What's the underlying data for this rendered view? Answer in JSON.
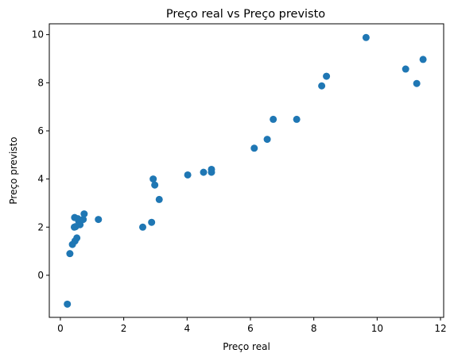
{
  "chart_data": {
    "type": "scatter",
    "title": "Preço real vs Preço previsto",
    "xlabel": "Preço real",
    "ylabel": "Preço previsto",
    "xlim": [
      -0.35,
      12.1
    ],
    "ylim": [
      -1.75,
      10.45
    ],
    "xticks": [
      0,
      2,
      4,
      6,
      8,
      10,
      12
    ],
    "yticks": [
      0,
      2,
      4,
      6,
      8,
      10
    ],
    "grid": false,
    "color": "#1f77b4",
    "points": [
      {
        "x": 0.22,
        "y": -1.2
      },
      {
        "x": 0.3,
        "y": 0.9
      },
      {
        "x": 0.38,
        "y": 1.28
      },
      {
        "x": 0.46,
        "y": 1.42
      },
      {
        "x": 0.52,
        "y": 1.55
      },
      {
        "x": 0.44,
        "y": 2.0
      },
      {
        "x": 0.48,
        "y": 2.02
      },
      {
        "x": 0.62,
        "y": 2.1
      },
      {
        "x": 0.58,
        "y": 2.25
      },
      {
        "x": 0.72,
        "y": 2.32
      },
      {
        "x": 0.45,
        "y": 2.4
      },
      {
        "x": 0.55,
        "y": 2.35
      },
      {
        "x": 0.75,
        "y": 2.55
      },
      {
        "x": 1.2,
        "y": 2.32
      },
      {
        "x": 2.6,
        "y": 2.0
      },
      {
        "x": 2.88,
        "y": 2.2
      },
      {
        "x": 2.93,
        "y": 4.0
      },
      {
        "x": 2.98,
        "y": 3.75
      },
      {
        "x": 3.12,
        "y": 3.15
      },
      {
        "x": 4.02,
        "y": 4.17
      },
      {
        "x": 4.52,
        "y": 4.28
      },
      {
        "x": 4.77,
        "y": 4.28
      },
      {
        "x": 4.77,
        "y": 4.4
      },
      {
        "x": 6.12,
        "y": 5.28
      },
      {
        "x": 6.53,
        "y": 5.65
      },
      {
        "x": 6.72,
        "y": 6.48
      },
      {
        "x": 7.46,
        "y": 6.48
      },
      {
        "x": 8.25,
        "y": 7.87
      },
      {
        "x": 8.4,
        "y": 8.27
      },
      {
        "x": 9.65,
        "y": 9.88
      },
      {
        "x": 10.9,
        "y": 8.57
      },
      {
        "x": 11.25,
        "y": 7.97
      },
      {
        "x": 11.45,
        "y": 8.97
      }
    ]
  }
}
